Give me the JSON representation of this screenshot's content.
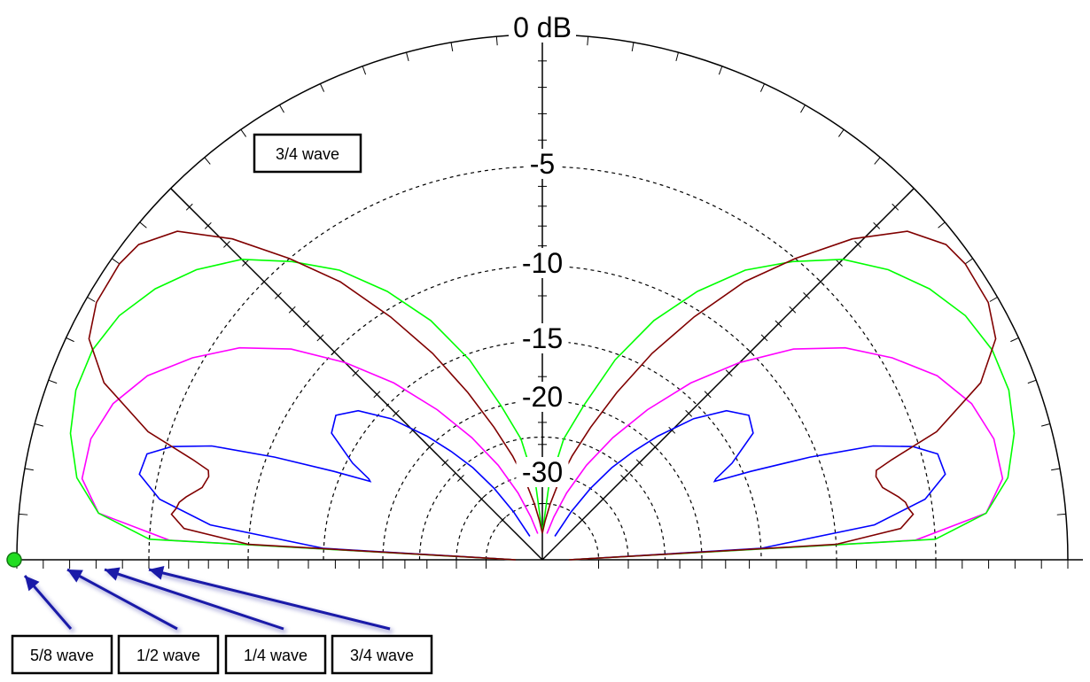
{
  "chart_data": {
    "type": "polar-elevation",
    "title": "",
    "ring_labels": [
      "0 dB",
      "-5",
      "-10",
      "-15",
      "-20",
      "-30"
    ],
    "ring_values_db": [
      0,
      -5,
      -10,
      -15,
      -20,
      -30
    ],
    "angle_range_deg": [
      0,
      180
    ],
    "grid": true,
    "series": [
      {
        "name": "5/8 wave",
        "color": "#0000ff",
        "points": [
          [
            0,
            -40
          ],
          [
            3,
            -15
          ],
          [
            6,
            -8
          ],
          [
            9,
            -5.3
          ],
          [
            12,
            -4.3
          ],
          [
            15,
            -4.4
          ],
          [
            17,
            -5.3
          ],
          [
            19,
            -7.2
          ],
          [
            21,
            -10.5
          ],
          [
            23,
            -14.5
          ],
          [
            24.5,
            -17.5
          ],
          [
            25,
            -17.3
          ],
          [
            27,
            -15.5
          ],
          [
            31,
            -13.2
          ],
          [
            35,
            -12.8
          ],
          [
            39,
            -13.8
          ],
          [
            43,
            -16
          ],
          [
            47,
            -19.2
          ],
          [
            50,
            -22.5
          ],
          [
            53,
            -26
          ],
          [
            56,
            -30
          ],
          [
            59,
            -35
          ],
          [
            62,
            -40
          ]
        ]
      },
      {
        "name": "1/2 wave",
        "color": "#ff00ff",
        "points": [
          [
            0,
            -40
          ],
          [
            3,
            -6
          ],
          [
            6,
            -3
          ],
          [
            10,
            -2.2
          ],
          [
            15,
            -2.2
          ],
          [
            20,
            -2.6
          ],
          [
            25,
            -3.4
          ],
          [
            30,
            -4.6
          ],
          [
            35,
            -6.2
          ],
          [
            40,
            -8.3
          ],
          [
            45,
            -11
          ],
          [
            50,
            -14.2
          ],
          [
            55,
            -18
          ],
          [
            60,
            -22.5
          ],
          [
            65,
            -27.5
          ],
          [
            70,
            -32.5
          ],
          [
            75,
            -37
          ],
          [
            80,
            -40
          ]
        ]
      },
      {
        "name": "1/4 wave",
        "color": "#00ff00",
        "points": [
          [
            0,
            -40
          ],
          [
            3,
            -5
          ],
          [
            6,
            -3
          ],
          [
            10,
            -2
          ],
          [
            15,
            -1.4
          ],
          [
            20,
            -1.1
          ],
          [
            25,
            -1.1
          ],
          [
            30,
            -1.4
          ],
          [
            35,
            -2
          ],
          [
            40,
            -2.8
          ],
          [
            45,
            -3.8
          ],
          [
            50,
            -5.2
          ],
          [
            55,
            -7
          ],
          [
            60,
            -9.2
          ],
          [
            65,
            -12
          ],
          [
            70,
            -15.5
          ],
          [
            75,
            -20
          ],
          [
            80,
            -25
          ],
          [
            85,
            -32
          ],
          [
            90,
            -40
          ]
        ]
      },
      {
        "name": "3/4 wave",
        "color": "#800000",
        "points": [
          [
            0,
            -40
          ],
          [
            3,
            -10
          ],
          [
            5,
            -6.7
          ],
          [
            7,
            -6
          ],
          [
            8,
            -6.2
          ],
          [
            9,
            -6.3
          ],
          [
            10,
            -6.6
          ],
          [
            12,
            -7.3
          ],
          [
            14,
            -7.5
          ],
          [
            15,
            -7.4
          ],
          [
            16,
            -6.5
          ],
          [
            18,
            -4.2
          ],
          [
            22,
            -2
          ],
          [
            26,
            -0.8
          ],
          [
            30,
            -0.4
          ],
          [
            35,
            -0.35
          ],
          [
            38,
            -0.5
          ],
          [
            42,
            -1.3
          ],
          [
            46,
            -3
          ],
          [
            50,
            -5
          ],
          [
            54,
            -7.5
          ],
          [
            58,
            -10.5
          ],
          [
            62,
            -14
          ],
          [
            66,
            -18
          ],
          [
            70,
            -22.5
          ],
          [
            74,
            -27
          ],
          [
            78,
            -31
          ],
          [
            82,
            -35
          ],
          [
            86,
            -38
          ],
          [
            90,
            -40
          ]
        ]
      }
    ],
    "annotations": [
      {
        "text": "3/4 wave",
        "type": "box-label"
      },
      {
        "text": "5/8 wave",
        "type": "arrow-label"
      },
      {
        "text": "1/2 wave",
        "type": "arrow-label"
      },
      {
        "text": "1/4 wave",
        "type": "arrow-label"
      },
      {
        "text": "3/4 wave",
        "type": "arrow-label"
      }
    ]
  }
}
